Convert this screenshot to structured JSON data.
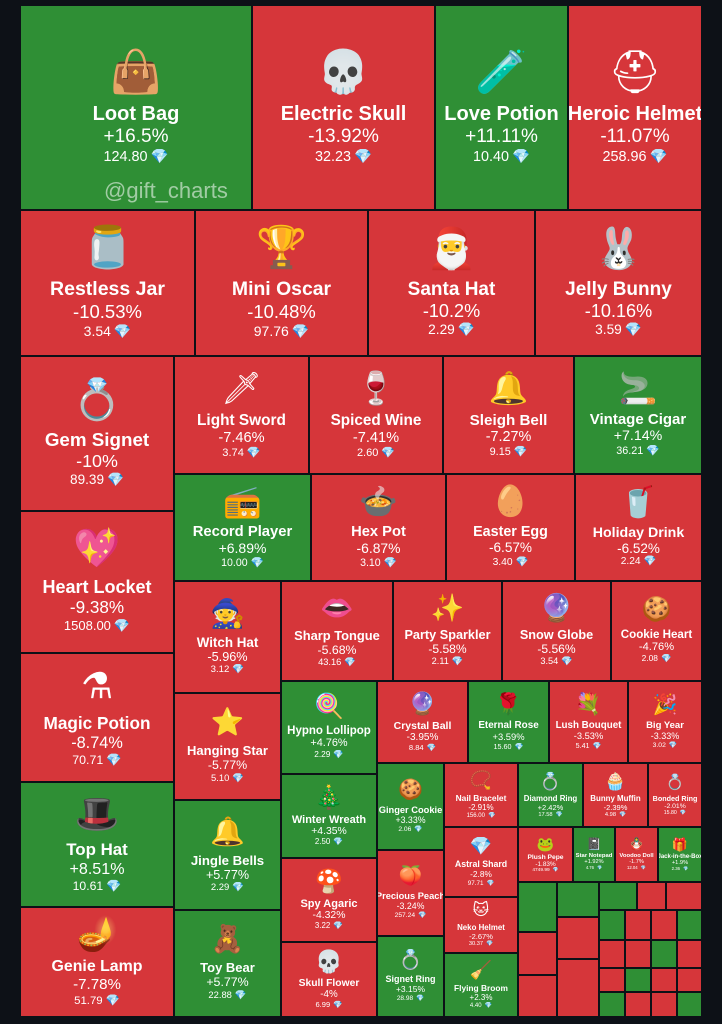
{
  "colors": {
    "up": "#2f8f35",
    "down": "#d6363a",
    "background": "#0d1117"
  },
  "watermark": "@gift_charts",
  "currency_icon": "💎",
  "chart_data": {
    "type": "treemap",
    "items": [
      {
        "name": "Loot Bag",
        "change": "+16.5%",
        "price": "124.80",
        "icon": "👜"
      },
      {
        "name": "Electric Skull",
        "change": "-13.92%",
        "price": "32.23",
        "icon": "💀"
      },
      {
        "name": "Love Potion",
        "change": "+11.11%",
        "price": "10.40",
        "icon": "🧪"
      },
      {
        "name": "Heroic Helmet",
        "change": "-11.07%",
        "price": "258.96",
        "icon": "⛑"
      },
      {
        "name": "Restless Jar",
        "change": "-10.53%",
        "price": "3.54",
        "icon": "🫙"
      },
      {
        "name": "Mini Oscar",
        "change": "-10.48%",
        "price": "97.76",
        "icon": "🏆"
      },
      {
        "name": "Santa Hat",
        "change": "-10.2%",
        "price": "2.29",
        "icon": "🎅"
      },
      {
        "name": "Jelly Bunny",
        "change": "-10.16%",
        "price": "3.59",
        "icon": "🐰"
      },
      {
        "name": "Gem Signet",
        "change": "-10%",
        "price": "89.39",
        "icon": "💍"
      },
      {
        "name": "Light Sword",
        "change": "-7.46%",
        "price": "3.74",
        "icon": "🗡"
      },
      {
        "name": "Spiced Wine",
        "change": "-7.41%",
        "price": "2.60",
        "icon": "🍷"
      },
      {
        "name": "Sleigh Bell",
        "change": "-7.27%",
        "price": "9.15",
        "icon": "🔔"
      },
      {
        "name": "Vintage Cigar",
        "change": "+7.14%",
        "price": "36.21",
        "icon": "🚬"
      },
      {
        "name": "Heart Locket",
        "change": "-9.38%",
        "price": "1508.00",
        "icon": "💖"
      },
      {
        "name": "Record Player",
        "change": "+6.89%",
        "price": "10.00",
        "icon": "📻"
      },
      {
        "name": "Hex Pot",
        "change": "-6.87%",
        "price": "3.10",
        "icon": "🍲"
      },
      {
        "name": "Easter Egg",
        "change": "-6.57%",
        "price": "3.40",
        "icon": "🥚"
      },
      {
        "name": "Holiday Drink",
        "change": "-6.52%",
        "price": "2.24",
        "icon": "🥤"
      },
      {
        "name": "Witch Hat",
        "change": "-5.96%",
        "price": "3.12",
        "icon": "🧙"
      },
      {
        "name": "Sharp Tongue",
        "change": "-5.68%",
        "price": "43.16",
        "icon": "👄"
      },
      {
        "name": "Party Sparkler",
        "change": "-5.58%",
        "price": "2.11",
        "icon": "✨"
      },
      {
        "name": "Snow Globe",
        "change": "-5.56%",
        "price": "3.54",
        "icon": "🔮"
      },
      {
        "name": "Cookie Heart",
        "change": "-4.76%",
        "price": "2.08",
        "icon": "🍪"
      },
      {
        "name": "Magic Potion",
        "change": "-8.74%",
        "price": "70.71",
        "icon": "⚗"
      },
      {
        "name": "Hanging Star",
        "change": "-5.77%",
        "price": "5.10",
        "icon": "⭐"
      },
      {
        "name": "Hypno Lollipop",
        "change": "+4.76%",
        "price": "2.29",
        "icon": "🍭"
      },
      {
        "name": "Crystal Ball",
        "change": "-3.95%",
        "price": "8.84",
        "icon": "🔮"
      },
      {
        "name": "Eternal Rose",
        "change": "+3.59%",
        "price": "15.60",
        "icon": "🌹"
      },
      {
        "name": "Lush Bouquet",
        "change": "-3.53%",
        "price": "5.41",
        "icon": "💐"
      },
      {
        "name": "Big Year",
        "change": "-3.33%",
        "price": "3.02",
        "icon": "🎉"
      },
      {
        "name": "Winter Wreath",
        "change": "+4.35%",
        "price": "2.50",
        "icon": "🎄"
      },
      {
        "name": "Ginger Cookie",
        "change": "+3.33%",
        "price": "2.06",
        "icon": "🍪"
      },
      {
        "name": "Nail Bracelet",
        "change": "-2.91%",
        "price": "156.00",
        "icon": "📿"
      },
      {
        "name": "Diamond Ring",
        "change": "+2.42%",
        "price": "17.58",
        "icon": "💍"
      },
      {
        "name": "Bunny Muffin",
        "change": "-2.39%",
        "price": "4.98",
        "icon": "🧁"
      },
      {
        "name": "Bonded Ring",
        "change": "-2.01%",
        "price": "15.80",
        "icon": "💍"
      },
      {
        "name": "Top Hat",
        "change": "+8.51%",
        "price": "10.61",
        "icon": "🎩"
      },
      {
        "name": "Jingle Bells",
        "change": "+5.77%",
        "price": "2.29",
        "icon": "🔔"
      },
      {
        "name": "Astral Shard",
        "change": "-2.8%",
        "price": "97.71",
        "icon": "💎"
      },
      {
        "name": "Plush Pepe",
        "change": "-1.83%",
        "price": "4749.99",
        "icon": "🐸"
      },
      {
        "name": "Star Notepad",
        "change": "+1.92%",
        "price": "4.76",
        "icon": "📓"
      },
      {
        "name": "Voodoo Doll",
        "change": "-1.7%",
        "price": "12.04",
        "icon": "🪆"
      },
      {
        "name": "Jack-in-the-Box",
        "change": "+1.9%",
        "price": "2.36",
        "icon": "🎁"
      },
      {
        "name": "Spy Agaric",
        "change": "-4.32%",
        "price": "3.22",
        "icon": "🍄"
      },
      {
        "name": "Precious Peach",
        "change": "-3.24%",
        "price": "257.24",
        "icon": "🍑"
      },
      {
        "name": "Genie Lamp",
        "change": "-7.78%",
        "price": "51.79",
        "icon": "🪔"
      },
      {
        "name": "Toy Bear",
        "change": "+5.77%",
        "price": "22.88",
        "icon": "🧸"
      },
      {
        "name": "Skull Flower",
        "change": "-4%",
        "price": "6.99",
        "icon": "💀"
      },
      {
        "name": "Signet Ring",
        "change": "+3.15%",
        "price": "28.98",
        "icon": "💍"
      },
      {
        "name": "Neko Helmet",
        "change": "-2.67%",
        "price": "30.37",
        "icon": "🐱"
      },
      {
        "name": "Flying Broom",
        "change": "+2.3%",
        "price": "4.40",
        "icon": "🧹"
      },
      {
        "name": "",
        "change": "",
        "price": "",
        "icon": ""
      },
      {
        "name": "",
        "change": "",
        "price": "",
        "icon": ""
      },
      {
        "name": "",
        "change": "",
        "price": "",
        "icon": ""
      },
      {
        "name": "",
        "change": "",
        "price": "",
        "icon": ""
      },
      {
        "name": "",
        "change": "",
        "price": "",
        "icon": ""
      },
      {
        "name": "",
        "change": "",
        "price": "",
        "icon": ""
      },
      {
        "name": "",
        "change": "",
        "price": "",
        "icon": ""
      },
      {
        "name": "",
        "change": "",
        "price": "",
        "icon": ""
      },
      {
        "name": "",
        "change": "",
        "price": "",
        "icon": ""
      },
      {
        "name": "",
        "change": "",
        "price": "",
        "icon": ""
      },
      {
        "name": "",
        "change": "",
        "price": "",
        "icon": ""
      },
      {
        "name": "",
        "change": "",
        "price": "",
        "icon": ""
      },
      {
        "name": "",
        "change": "",
        "price": "",
        "icon": ""
      },
      {
        "name": "",
        "change": "",
        "price": "",
        "icon": ""
      },
      {
        "name": "",
        "change": "",
        "price": "",
        "icon": ""
      },
      {
        "name": "",
        "change": "",
        "price": "",
        "icon": ""
      },
      {
        "name": "",
        "change": "",
        "price": "",
        "icon": ""
      },
      {
        "name": "",
        "change": "",
        "price": "",
        "icon": ""
      },
      {
        "name": "",
        "change": "",
        "price": "",
        "icon": ""
      },
      {
        "name": "",
        "change": "",
        "price": "",
        "icon": ""
      },
      {
        "name": "",
        "change": "",
        "price": "",
        "icon": ""
      },
      {
        "name": "",
        "change": "",
        "price": "",
        "icon": ""
      },
      {
        "name": "",
        "change": "",
        "price": "",
        "icon": ""
      },
      {
        "name": "",
        "change": "",
        "price": "",
        "icon": ""
      },
      {
        "name": "",
        "change": "",
        "price": "",
        "icon": ""
      },
      {
        "name": "",
        "change": "",
        "price": "",
        "icon": ""
      },
      {
        "name": "",
        "change": "",
        "price": "",
        "icon": ""
      },
      {
        "name": "",
        "change": "",
        "price": "",
        "icon": ""
      },
      {
        "name": "",
        "change": "",
        "price": "",
        "icon": ""
      }
    ]
  }
}
